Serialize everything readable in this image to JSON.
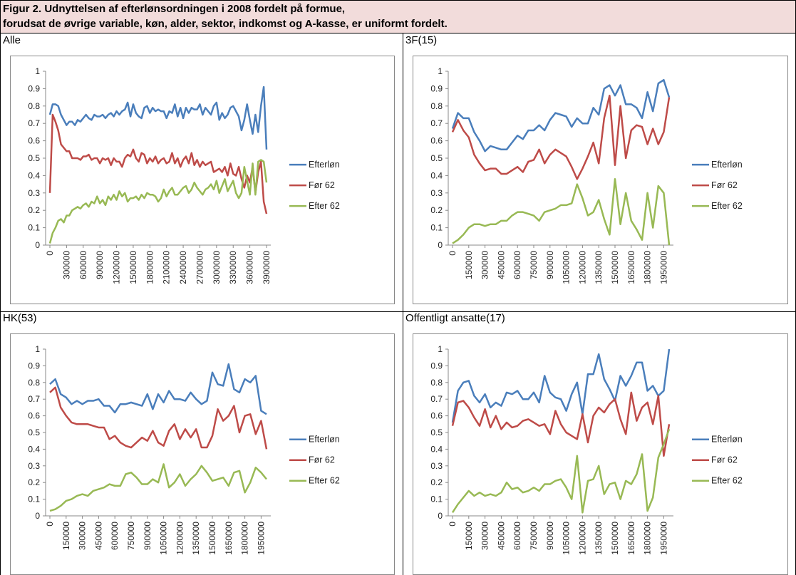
{
  "header": {
    "title": [
      "Figur 2. Udnyttelsen af efterlønsordningen i 2008 fordelt på formue,",
      "forudsat de øvrige variable, køn, alder, sektor, indkomst og A-kasse, er uniformt fordelt."
    ]
  },
  "chart_data": [
    {
      "type": "line",
      "title": "Alle",
      "x": [
        0,
        50000,
        100000,
        150000,
        200000,
        250000,
        300000,
        350000,
        400000,
        450000,
        500000,
        550000,
        600000,
        650000,
        700000,
        750000,
        800000,
        850000,
        900000,
        950000,
        1000000,
        1050000,
        1100000,
        1150000,
        1200000,
        1250000,
        1300000,
        1350000,
        1400000,
        1450000,
        1500000,
        1550000,
        1600000,
        1650000,
        1700000,
        1750000,
        1800000,
        1850000,
        1900000,
        1950000,
        2000000,
        2050000,
        2100000,
        2150000,
        2200000,
        2250000,
        2300000,
        2350000,
        2400000,
        2450000,
        2500000,
        2550000,
        2600000,
        2650000,
        2700000,
        2750000,
        2800000,
        2850000,
        2900000,
        2950000,
        3000000,
        3050000,
        3100000,
        3150000,
        3200000,
        3250000,
        3300000,
        3350000,
        3400000,
        3450000,
        3500000,
        3550000,
        3600000,
        3650000,
        3700000,
        3750000,
        3800000,
        3850000,
        3900000
      ],
      "xlim": [
        0,
        3900000
      ],
      "xticks": [
        0,
        300000,
        600000,
        900000,
        1200000,
        1500000,
        1800000,
        2100000,
        2400000,
        2700000,
        3000000,
        3300000,
        3600000,
        3900000
      ],
      "ylim": [
        0,
        1
      ],
      "yticks": [
        0,
        0.1,
        0.2,
        0.3,
        0.4,
        0.5,
        0.6,
        0.7,
        0.8,
        0.9,
        1
      ],
      "legend": "right",
      "series": [
        {
          "name": "Efterløn",
          "color": "#4a7ebb",
          "values": [
            0.75,
            0.81,
            0.81,
            0.8,
            0.75,
            0.72,
            0.69,
            0.71,
            0.71,
            0.69,
            0.72,
            0.71,
            0.73,
            0.75,
            0.73,
            0.72,
            0.75,
            0.74,
            0.74,
            0.75,
            0.73,
            0.75,
            0.76,
            0.74,
            0.77,
            0.75,
            0.77,
            0.78,
            0.82,
            0.74,
            0.81,
            0.76,
            0.74,
            0.73,
            0.79,
            0.8,
            0.76,
            0.79,
            0.77,
            0.78,
            0.77,
            0.77,
            0.73,
            0.77,
            0.76,
            0.81,
            0.74,
            0.79,
            0.73,
            0.79,
            0.76,
            0.79,
            0.78,
            0.78,
            0.81,
            0.75,
            0.79,
            0.77,
            0.75,
            0.8,
            0.82,
            0.72,
            0.76,
            0.73,
            0.75,
            0.79,
            0.8,
            0.77,
            0.74,
            0.66,
            0.72,
            0.81,
            0.72,
            0.64,
            0.75,
            0.65,
            0.8,
            0.91,
            0.55
          ]
        },
        {
          "name": "Før 62",
          "color": "#be4b48",
          "values": [
            0.3,
            0.75,
            0.71,
            0.66,
            0.58,
            0.56,
            0.54,
            0.54,
            0.5,
            0.5,
            0.5,
            0.49,
            0.51,
            0.51,
            0.52,
            0.49,
            0.5,
            0.5,
            0.47,
            0.5,
            0.49,
            0.5,
            0.46,
            0.5,
            0.48,
            0.48,
            0.45,
            0.5,
            0.52,
            0.51,
            0.55,
            0.5,
            0.48,
            0.53,
            0.52,
            0.47,
            0.5,
            0.48,
            0.51,
            0.47,
            0.49,
            0.5,
            0.47,
            0.48,
            0.53,
            0.47,
            0.5,
            0.45,
            0.49,
            0.51,
            0.47,
            0.53,
            0.46,
            0.49,
            0.45,
            0.48,
            0.46,
            0.47,
            0.48,
            0.42,
            0.43,
            0.44,
            0.42,
            0.45,
            0.4,
            0.47,
            0.41,
            0.4,
            0.45,
            0.38,
            0.33,
            0.4,
            0.36,
            0.45,
            0.3,
            0.42,
            0.48,
            0.25,
            0.18
          ]
        },
        {
          "name": "Efter 62",
          "color": "#98b954",
          "values": [
            0.01,
            0.07,
            0.1,
            0.14,
            0.15,
            0.13,
            0.17,
            0.17,
            0.2,
            0.21,
            0.22,
            0.21,
            0.23,
            0.24,
            0.22,
            0.25,
            0.24,
            0.28,
            0.24,
            0.26,
            0.23,
            0.28,
            0.26,
            0.29,
            0.26,
            0.31,
            0.28,
            0.3,
            0.25,
            0.27,
            0.27,
            0.28,
            0.26,
            0.29,
            0.27,
            0.3,
            0.29,
            0.29,
            0.28,
            0.25,
            0.27,
            0.32,
            0.28,
            0.31,
            0.33,
            0.29,
            0.29,
            0.31,
            0.33,
            0.34,
            0.3,
            0.32,
            0.36,
            0.33,
            0.31,
            0.29,
            0.32,
            0.33,
            0.35,
            0.32,
            0.37,
            0.3,
            0.34,
            0.38,
            0.31,
            0.34,
            0.37,
            0.3,
            0.27,
            0.3,
            0.45,
            0.37,
            0.29,
            0.47,
            0.29,
            0.48,
            0.49,
            0.48,
            0.36
          ]
        }
      ]
    },
    {
      "type": "line",
      "title": "3F(15)",
      "x": [
        0,
        50000,
        100000,
        150000,
        200000,
        250000,
        300000,
        350000,
        400000,
        450000,
        500000,
        550000,
        600000,
        650000,
        700000,
        750000,
        800000,
        850000,
        900000,
        950000,
        1000000,
        1050000,
        1100000,
        1150000,
        1200000,
        1250000,
        1300000,
        1350000,
        1400000,
        1450000,
        1500000,
        1550000,
        1600000,
        1650000,
        1700000,
        1750000,
        1800000,
        1850000,
        1900000,
        1950000,
        2000000
      ],
      "xlim": [
        0,
        2000000
      ],
      "xticks": [
        0,
        150000,
        300000,
        450000,
        600000,
        750000,
        900000,
        1050000,
        1200000,
        1350000,
        1500000,
        1650000,
        1800000,
        1950000
      ],
      "ylim": [
        0,
        1
      ],
      "yticks": [
        0,
        0.1,
        0.2,
        0.3,
        0.4,
        0.5,
        0.6,
        0.7,
        0.8,
        0.9,
        1
      ],
      "legend": "right",
      "series": [
        {
          "name": "Efterløn",
          "color": "#4a7ebb",
          "values": [
            0.67,
            0.76,
            0.73,
            0.73,
            0.65,
            0.6,
            0.54,
            0.57,
            0.56,
            0.55,
            0.55,
            0.59,
            0.63,
            0.61,
            0.66,
            0.66,
            0.69,
            0.66,
            0.72,
            0.76,
            0.75,
            0.74,
            0.68,
            0.73,
            0.7,
            0.7,
            0.79,
            0.75,
            0.9,
            0.92,
            0.86,
            0.92,
            0.81,
            0.81,
            0.79,
            0.73,
            0.88,
            0.77,
            0.93,
            0.95,
            0.85
          ]
        },
        {
          "name": "Før 62",
          "color": "#be4b48",
          "values": [
            0.65,
            0.72,
            0.66,
            0.62,
            0.52,
            0.47,
            0.43,
            0.44,
            0.44,
            0.41,
            0.41,
            0.43,
            0.45,
            0.42,
            0.48,
            0.49,
            0.55,
            0.47,
            0.52,
            0.55,
            0.53,
            0.51,
            0.45,
            0.38,
            0.44,
            0.51,
            0.59,
            0.47,
            0.73,
            0.86,
            0.46,
            0.8,
            0.5,
            0.66,
            0.69,
            0.68,
            0.58,
            0.67,
            0.58,
            0.65,
            0.85
          ]
        },
        {
          "name": "Efter 62",
          "color": "#98b954",
          "values": [
            0.01,
            0.03,
            0.06,
            0.1,
            0.12,
            0.12,
            0.11,
            0.12,
            0.12,
            0.14,
            0.14,
            0.17,
            0.19,
            0.19,
            0.18,
            0.17,
            0.14,
            0.19,
            0.2,
            0.21,
            0.23,
            0.23,
            0.24,
            0.35,
            0.27,
            0.17,
            0.19,
            0.26,
            0.15,
            0.06,
            0.38,
            0.12,
            0.3,
            0.14,
            0.09,
            0.03,
            0.3,
            0.1,
            0.34,
            0.3,
            0.0
          ]
        }
      ]
    },
    {
      "type": "line",
      "title": "HK(53)",
      "x": [
        0,
        50000,
        100000,
        150000,
        200000,
        250000,
        300000,
        350000,
        400000,
        450000,
        500000,
        550000,
        600000,
        650000,
        700000,
        750000,
        800000,
        850000,
        900000,
        950000,
        1000000,
        1050000,
        1100000,
        1150000,
        1200000,
        1250000,
        1300000,
        1350000,
        1400000,
        1450000,
        1500000,
        1550000,
        1600000,
        1650000,
        1700000,
        1750000,
        1800000,
        1850000,
        1900000,
        1950000,
        2000000
      ],
      "xlim": [
        0,
        2000000
      ],
      "xticks": [
        0,
        150000,
        300000,
        450000,
        600000,
        750000,
        900000,
        1050000,
        1200000,
        1350000,
        1500000,
        1650000,
        1800000,
        1950000
      ],
      "ylim": [
        0,
        1
      ],
      "yticks": [
        0,
        0.1,
        0.2,
        0.3,
        0.4,
        0.5,
        0.6,
        0.7,
        0.8,
        0.9,
        1
      ],
      "legend": "right",
      "series": [
        {
          "name": "Efterløn",
          "color": "#4a7ebb",
          "values": [
            0.79,
            0.82,
            0.73,
            0.71,
            0.67,
            0.69,
            0.67,
            0.69,
            0.69,
            0.7,
            0.66,
            0.66,
            0.62,
            0.67,
            0.67,
            0.68,
            0.67,
            0.66,
            0.73,
            0.64,
            0.73,
            0.68,
            0.75,
            0.7,
            0.7,
            0.69,
            0.74,
            0.7,
            0.67,
            0.69,
            0.86,
            0.79,
            0.78,
            0.91,
            0.76,
            0.74,
            0.82,
            0.8,
            0.84,
            0.63,
            0.61
          ]
        },
        {
          "name": "Før 62",
          "color": "#be4b48",
          "values": [
            0.74,
            0.77,
            0.65,
            0.6,
            0.56,
            0.55,
            0.55,
            0.55,
            0.54,
            0.53,
            0.53,
            0.46,
            0.48,
            0.44,
            0.42,
            0.41,
            0.44,
            0.47,
            0.45,
            0.51,
            0.44,
            0.42,
            0.51,
            0.55,
            0.46,
            0.52,
            0.47,
            0.52,
            0.41,
            0.41,
            0.48,
            0.64,
            0.57,
            0.6,
            0.66,
            0.5,
            0.6,
            0.61,
            0.49,
            0.57,
            0.4
          ]
        },
        {
          "name": "Efter 62",
          "color": "#98b954",
          "values": [
            0.03,
            0.04,
            0.06,
            0.09,
            0.1,
            0.12,
            0.13,
            0.12,
            0.15,
            0.16,
            0.17,
            0.19,
            0.18,
            0.18,
            0.25,
            0.26,
            0.23,
            0.19,
            0.19,
            0.22,
            0.2,
            0.31,
            0.17,
            0.2,
            0.25,
            0.18,
            0.22,
            0.25,
            0.3,
            0.26,
            0.21,
            0.22,
            0.23,
            0.18,
            0.26,
            0.27,
            0.14,
            0.2,
            0.29,
            0.26,
            0.22
          ]
        }
      ]
    },
    {
      "type": "line",
      "title": "Offentligt ansatte(17)",
      "x": [
        0,
        50000,
        100000,
        150000,
        200000,
        250000,
        300000,
        350000,
        400000,
        450000,
        500000,
        550000,
        600000,
        650000,
        700000,
        750000,
        800000,
        850000,
        900000,
        950000,
        1000000,
        1050000,
        1100000,
        1150000,
        1200000,
        1250000,
        1300000,
        1350000,
        1400000,
        1450000,
        1500000,
        1550000,
        1600000,
        1650000,
        1700000,
        1750000,
        1800000,
        1850000,
        1900000,
        1950000,
        2000000
      ],
      "xlim": [
        0,
        2000000
      ],
      "xticks": [
        0,
        150000,
        300000,
        450000,
        600000,
        750000,
        900000,
        1050000,
        1200000,
        1350000,
        1500000,
        1650000,
        1800000,
        1950000
      ],
      "ylim": [
        0,
        1
      ],
      "yticks": [
        0,
        0.1,
        0.2,
        0.3,
        0.4,
        0.5,
        0.6,
        0.7,
        0.8,
        0.9,
        1
      ],
      "legend": "right",
      "series": [
        {
          "name": "Efterløn",
          "color": "#4a7ebb",
          "values": [
            0.56,
            0.75,
            0.8,
            0.81,
            0.72,
            0.68,
            0.73,
            0.65,
            0.68,
            0.66,
            0.74,
            0.73,
            0.75,
            0.7,
            0.7,
            0.74,
            0.68,
            0.84,
            0.74,
            0.71,
            0.7,
            0.63,
            0.73,
            0.8,
            0.61,
            0.85,
            0.85,
            0.97,
            0.82,
            0.76,
            0.69,
            0.84,
            0.78,
            0.84,
            0.92,
            0.92,
            0.75,
            0.78,
            0.72,
            0.75,
            1.0
          ]
        },
        {
          "name": "Før 62",
          "color": "#be4b48",
          "values": [
            0.54,
            0.68,
            0.69,
            0.65,
            0.59,
            0.54,
            0.64,
            0.53,
            0.6,
            0.52,
            0.56,
            0.53,
            0.54,
            0.57,
            0.58,
            0.56,
            0.54,
            0.55,
            0.49,
            0.63,
            0.55,
            0.5,
            0.48,
            0.46,
            0.61,
            0.44,
            0.6,
            0.65,
            0.62,
            0.67,
            0.7,
            0.58,
            0.49,
            0.74,
            0.57,
            0.65,
            0.68,
            0.55,
            0.72,
            0.36,
            0.55
          ]
        },
        {
          "name": "Efter 62",
          "color": "#98b954",
          "values": [
            0.02,
            0.07,
            0.11,
            0.15,
            0.12,
            0.14,
            0.12,
            0.13,
            0.12,
            0.14,
            0.2,
            0.16,
            0.17,
            0.14,
            0.15,
            0.17,
            0.15,
            0.19,
            0.19,
            0.21,
            0.22,
            0.17,
            0.1,
            0.36,
            0.02,
            0.21,
            0.22,
            0.3,
            0.13,
            0.19,
            0.2,
            0.1,
            0.21,
            0.19,
            0.25,
            0.37,
            0.03,
            0.11,
            0.35,
            0.43,
            0.52
          ]
        }
      ]
    }
  ]
}
